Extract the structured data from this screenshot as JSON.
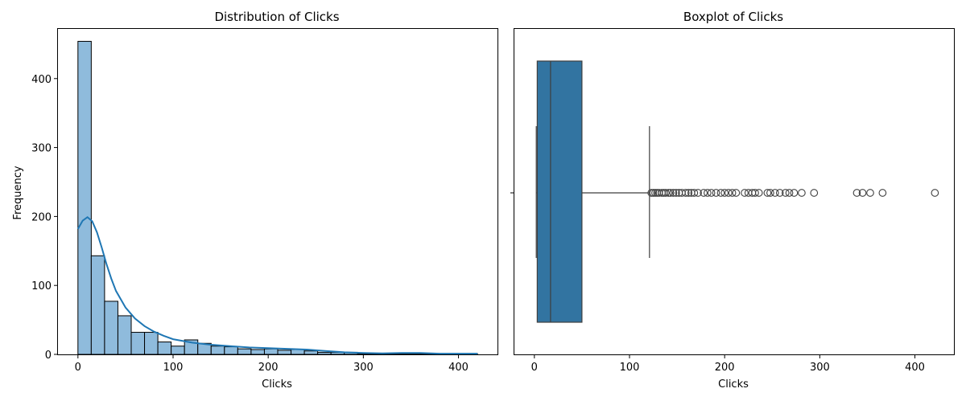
{
  "chart_data": [
    {
      "type": "histogram",
      "title": "Distribution of Clicks",
      "xlabel": "Clicks",
      "ylabel": "Frequency",
      "xlim": [
        -21,
        441
      ],
      "ylim": [
        0,
        472
      ],
      "xticks": [
        0,
        100,
        200,
        300,
        400
      ],
      "yticks": [
        0,
        100,
        200,
        300,
        400
      ],
      "bin_width": 14,
      "bin_start": 0,
      "bar_color": "#8fbbdc",
      "line_color": "#1f77b4",
      "counts": [
        454,
        143,
        77,
        56,
        32,
        32,
        18,
        12,
        21,
        16,
        12,
        11,
        8,
        7,
        8,
        6,
        7,
        5,
        3,
        3,
        3,
        1,
        1,
        1,
        1,
        1,
        1,
        1,
        1,
        1
      ],
      "kde": [
        [
          0,
          182
        ],
        [
          5,
          194
        ],
        [
          10,
          199
        ],
        [
          15,
          193
        ],
        [
          20,
          177
        ],
        [
          25,
          155
        ],
        [
          30,
          131
        ],
        [
          35,
          110
        ],
        [
          40,
          92
        ],
        [
          50,
          68
        ],
        [
          60,
          52
        ],
        [
          70,
          41
        ],
        [
          80,
          33
        ],
        [
          90,
          27
        ],
        [
          100,
          22
        ],
        [
          120,
          17
        ],
        [
          140,
          14
        ],
        [
          160,
          12
        ],
        [
          180,
          10
        ],
        [
          200,
          9
        ],
        [
          220,
          8
        ],
        [
          240,
          7
        ],
        [
          260,
          5
        ],
        [
          280,
          3
        ],
        [
          300,
          2
        ],
        [
          320,
          1.5
        ],
        [
          340,
          2
        ],
        [
          350,
          2
        ],
        [
          360,
          2
        ],
        [
          380,
          1
        ],
        [
          400,
          1
        ],
        [
          420,
          1
        ]
      ]
    },
    {
      "type": "boxplot",
      "title": "Boxplot of Clicks",
      "xlabel": "Clicks",
      "xlim": [
        -21,
        441
      ],
      "xticks": [
        0,
        100,
        200,
        300,
        400
      ],
      "box_color": "#3274a1",
      "whisker_low": 2,
      "q1": 3,
      "median": 17,
      "q3": 50,
      "whisker_high": 121,
      "outliers": [
        123,
        125,
        127,
        129,
        131,
        134,
        136,
        138,
        141,
        143,
        146,
        149,
        152,
        155,
        159,
        162,
        165,
        168,
        172,
        178,
        182,
        186,
        191,
        196,
        200,
        204,
        208,
        212,
        221,
        225,
        229,
        232,
        236,
        245,
        248,
        253,
        258,
        264,
        268,
        273,
        281,
        294,
        339,
        345,
        353,
        366,
        421
      ]
    }
  ]
}
